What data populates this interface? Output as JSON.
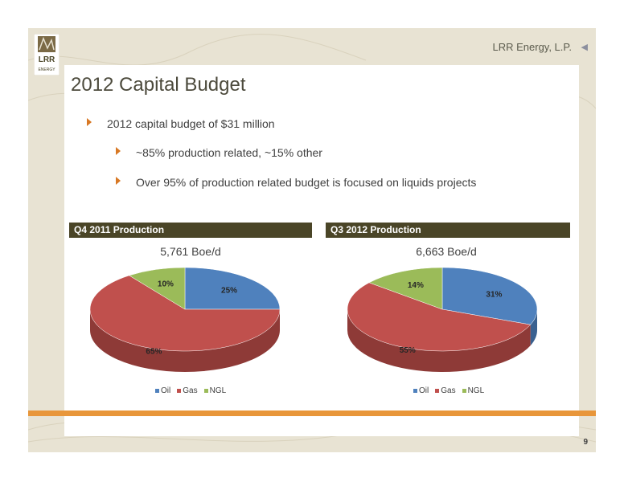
{
  "header": {
    "company": "LRR Energy, L.P.",
    "logo_text": [
      "LRR",
      "ENERGY"
    ]
  },
  "title": "2012 Capital Budget",
  "bullets": [
    {
      "text": "2012 capital budget of $31 million",
      "level": 1
    },
    {
      "text": "~85% production related, ~15% other",
      "level": 2
    },
    {
      "text": "Over 95% of production related budget is focused on liquids projects",
      "level": 2
    }
  ],
  "panels": [
    {
      "header": "Q4 2011 Production",
      "subtitle": "5,761 Boe/d"
    },
    {
      "header": "Q3 2012 Production",
      "subtitle": "6,663 Boe/d"
    }
  ],
  "legend": [
    "Oil",
    "Gas",
    "NGL"
  ],
  "colors": {
    "oil": "#4f81bd",
    "gas": "#c0504d",
    "ngl": "#9bbb59",
    "accent": "#e8963a",
    "header_bar": "#4a4527"
  },
  "chart_data": [
    {
      "type": "pie",
      "title": "5,761 Boe/d",
      "categories": [
        "Oil",
        "Gas",
        "NGL"
      ],
      "values": [
        25,
        65,
        10
      ],
      "labels": [
        "25%",
        "65%",
        "10%"
      ]
    },
    {
      "type": "pie",
      "title": "6,663 Boe/d",
      "categories": [
        "Oil",
        "Gas",
        "NGL"
      ],
      "values": [
        31,
        55,
        14
      ],
      "labels": [
        "31%",
        "55%",
        "14%"
      ]
    }
  ],
  "page_number": "9"
}
